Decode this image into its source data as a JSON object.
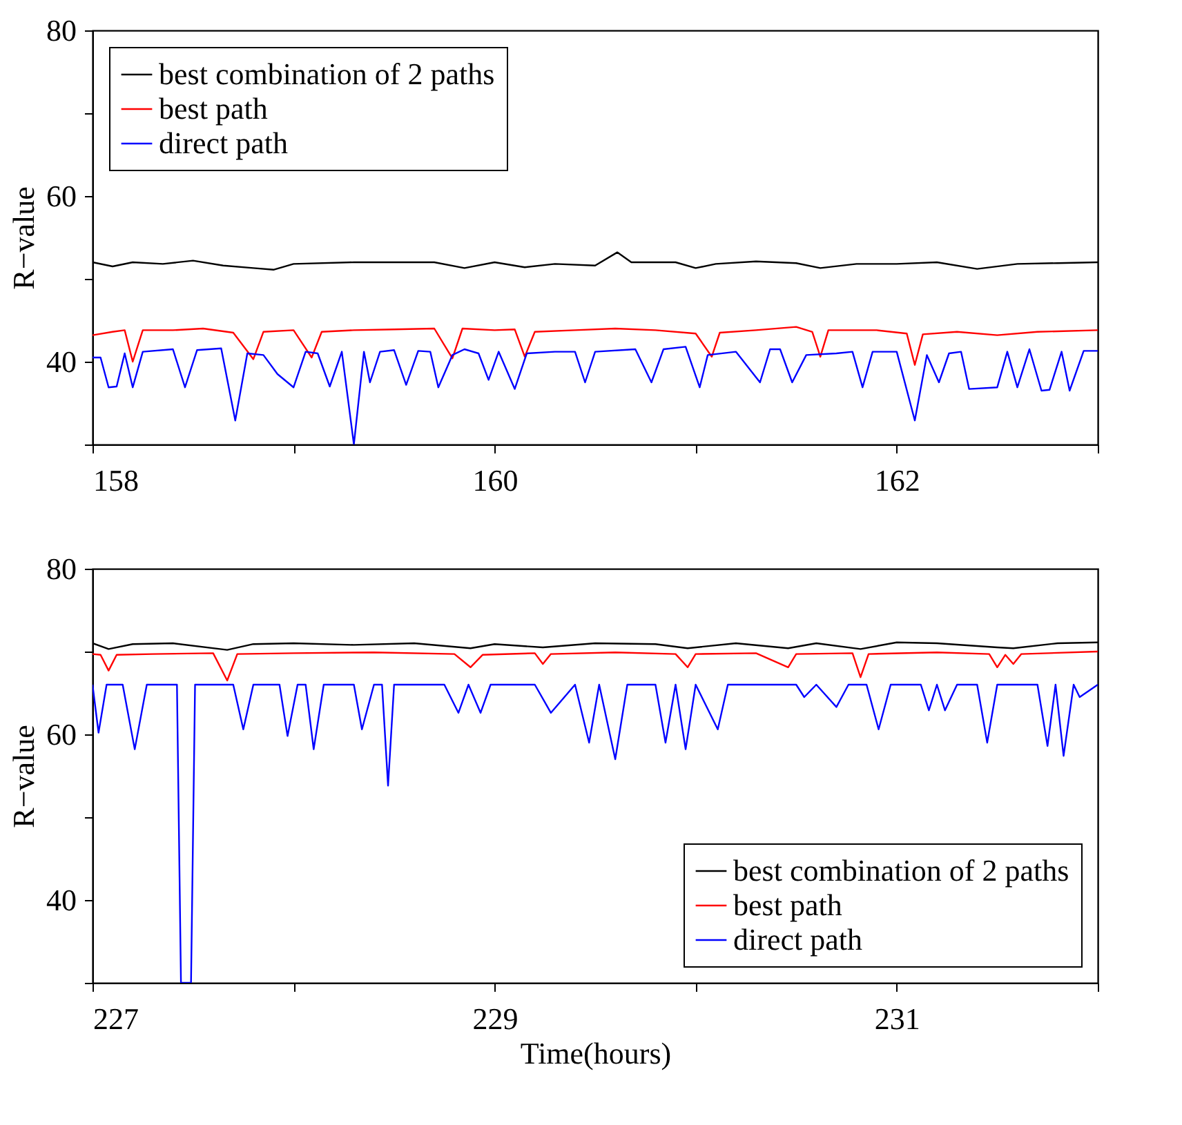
{
  "chart_data": [
    {
      "type": "line",
      "ylabel": "R−value",
      "xlim": [
        158,
        163
      ],
      "xticks": [
        158,
        {
          "value": 159,
          "label": null
        },
        160,
        {
          "value": 161,
          "label": null
        },
        162,
        {
          "value": 163,
          "label": null
        }
      ],
      "ylim": [
        30,
        80
      ],
      "yticks": [
        {
          "value": 30,
          "label": null
        },
        40,
        {
          "value": 50,
          "label": null
        },
        60,
        {
          "value": 70,
          "label": null
        },
        80
      ],
      "grid": false,
      "legend": "top left",
      "line_style": "solid",
      "marker": "none",
      "series": [
        {
          "name": "best combination of 2 paths",
          "color": "#000000",
          "x": [
            158.0,
            158.1,
            158.2,
            158.35,
            158.5,
            158.65,
            158.8,
            158.9,
            159.0,
            159.3,
            159.5,
            159.7,
            159.85,
            160.0,
            160.15,
            160.3,
            160.5,
            160.61,
            160.68,
            160.9,
            161.0,
            161.1,
            161.3,
            161.5,
            161.62,
            161.8,
            162.0,
            162.2,
            162.4,
            162.6,
            162.8,
            163.0
          ],
          "values": [
            52.0,
            51.5,
            52.0,
            51.8,
            52.2,
            51.6,
            51.3,
            51.1,
            51.8,
            52.0,
            52.0,
            52.0,
            51.3,
            52.0,
            51.4,
            51.8,
            51.6,
            53.2,
            52.0,
            52.0,
            51.3,
            51.8,
            52.1,
            51.9,
            51.3,
            51.8,
            51.8,
            52.0,
            51.2,
            51.8,
            51.9,
            52.0
          ]
        },
        {
          "name": "best path",
          "color": "#ff0000",
          "x": [
            158.0,
            158.1,
            158.16,
            158.2,
            158.25,
            158.4,
            158.55,
            158.7,
            158.8,
            158.85,
            159.0,
            159.09,
            159.14,
            159.3,
            159.5,
            159.7,
            159.79,
            159.84,
            160.0,
            160.1,
            160.15,
            160.2,
            160.4,
            160.6,
            160.8,
            161.0,
            161.08,
            161.12,
            161.3,
            161.5,
            161.58,
            161.62,
            161.66,
            161.9,
            162.05,
            162.09,
            162.13,
            162.3,
            162.5,
            162.7,
            163.0
          ],
          "values": [
            43.2,
            43.6,
            43.8,
            40.0,
            43.8,
            43.8,
            44.0,
            43.5,
            40.3,
            43.6,
            43.8,
            40.5,
            43.6,
            43.8,
            43.9,
            44.0,
            40.4,
            44.0,
            43.8,
            43.9,
            40.6,
            43.6,
            43.8,
            44.0,
            43.8,
            43.4,
            40.6,
            43.5,
            43.8,
            44.2,
            43.6,
            40.6,
            43.8,
            43.8,
            43.4,
            39.6,
            43.3,
            43.6,
            43.2,
            43.6,
            43.8
          ]
        },
        {
          "name": "direct path",
          "color": "#0000ff",
          "x": [
            158.0,
            158.04,
            158.08,
            158.12,
            158.16,
            158.2,
            158.25,
            158.4,
            158.46,
            158.52,
            158.64,
            158.71,
            158.77,
            158.85,
            158.92,
            159.0,
            159.06,
            159.12,
            159.18,
            159.24,
            159.3,
            159.35,
            159.38,
            159.43,
            159.5,
            159.56,
            159.62,
            159.68,
            159.72,
            159.79,
            159.85,
            159.92,
            159.97,
            160.02,
            160.1,
            160.16,
            160.3,
            160.4,
            160.45,
            160.5,
            160.7,
            160.78,
            160.84,
            160.95,
            161.02,
            161.06,
            161.2,
            161.32,
            161.37,
            161.42,
            161.48,
            161.55,
            161.7,
            161.78,
            161.83,
            161.88,
            162.0,
            162.09,
            162.15,
            162.21,
            162.26,
            162.32,
            162.36,
            162.5,
            162.55,
            162.6,
            162.66,
            162.72,
            162.76,
            162.82,
            162.86,
            162.93,
            163.0
          ],
          "values": [
            40.5,
            40.5,
            36.9,
            37.0,
            41.0,
            36.9,
            41.2,
            41.5,
            36.9,
            41.4,
            41.6,
            32.9,
            41.0,
            40.8,
            38.5,
            36.9,
            41.2,
            41.0,
            37.0,
            41.2,
            30.0,
            41.2,
            37.5,
            41.2,
            41.4,
            37.2,
            41.3,
            41.2,
            36.9,
            40.8,
            41.5,
            41.0,
            37.8,
            41.2,
            36.7,
            41.0,
            41.2,
            41.2,
            37.5,
            41.2,
            41.5,
            37.5,
            41.5,
            41.8,
            36.9,
            40.8,
            41.2,
            37.5,
            41.5,
            41.5,
            37.5,
            40.8,
            41.0,
            41.2,
            36.9,
            41.2,
            41.2,
            32.9,
            40.8,
            37.5,
            41.0,
            41.2,
            36.7,
            36.9,
            41.2,
            36.9,
            41.5,
            36.5,
            36.6,
            41.2,
            36.5,
            41.3,
            41.3
          ]
        }
      ]
    },
    {
      "type": "line",
      "xlabel": "Time(hours)",
      "ylabel": "R−value",
      "xlim": [
        227,
        232
      ],
      "xticks": [
        227,
        {
          "value": 228,
          "label": null
        },
        229,
        {
          "value": 230,
          "label": null
        },
        231,
        {
          "value": 232,
          "label": null
        }
      ],
      "ylim": [
        30,
        80
      ],
      "yticks": [
        {
          "value": 30,
          "label": null
        },
        40,
        {
          "value": 50,
          "label": null
        },
        60,
        {
          "value": 70,
          "label": null
        },
        80
      ],
      "grid": false,
      "legend": "bottom right",
      "line_style": "solid",
      "marker": "none",
      "series": [
        {
          "name": "best combination of 2 paths",
          "color": "#000000",
          "x": [
            227.0,
            227.08,
            227.2,
            227.4,
            227.67,
            227.8,
            228.0,
            228.3,
            228.6,
            228.88,
            229.0,
            229.24,
            229.5,
            229.8,
            229.96,
            230.2,
            230.46,
            230.6,
            230.82,
            231.0,
            231.2,
            231.5,
            231.58,
            231.8,
            232.0
          ],
          "values": [
            71.0,
            70.3,
            70.9,
            71.0,
            70.2,
            70.9,
            71.0,
            70.8,
            71.0,
            70.4,
            70.9,
            70.5,
            71.0,
            70.9,
            70.4,
            71.0,
            70.4,
            71.0,
            70.3,
            71.1,
            71.0,
            70.5,
            70.4,
            71.0,
            71.1
          ]
        },
        {
          "name": "best path",
          "color": "#ff0000",
          "x": [
            227.0,
            227.04,
            227.08,
            227.12,
            227.3,
            227.6,
            227.67,
            227.72,
            228.0,
            228.4,
            228.8,
            228.88,
            228.94,
            229.2,
            229.24,
            229.28,
            229.6,
            229.9,
            229.96,
            230.0,
            230.3,
            230.46,
            230.5,
            230.78,
            230.82,
            230.86,
            231.2,
            231.46,
            231.5,
            231.54,
            231.58,
            231.62,
            232.0
          ],
          "values": [
            69.7,
            69.6,
            67.7,
            69.6,
            69.7,
            69.8,
            66.5,
            69.7,
            69.8,
            69.9,
            69.7,
            68.1,
            69.6,
            69.8,
            68.5,
            69.7,
            69.9,
            69.7,
            68.1,
            69.7,
            69.8,
            68.1,
            69.7,
            69.8,
            66.9,
            69.7,
            69.9,
            69.7,
            68.1,
            69.6,
            68.5,
            69.7,
            70.0
          ]
        },
        {
          "name": "direct path",
          "color": "#0000ff",
          "x": [
            227.0,
            227.03,
            227.07,
            227.15,
            227.21,
            227.27,
            227.42,
            227.44,
            227.49,
            227.51,
            227.7,
            227.75,
            227.8,
            227.93,
            227.97,
            228.02,
            228.06,
            228.1,
            228.15,
            228.3,
            228.34,
            228.4,
            228.44,
            228.47,
            228.5,
            228.75,
            228.82,
            228.87,
            228.93,
            228.98,
            229.2,
            229.28,
            229.4,
            229.47,
            229.52,
            229.6,
            229.66,
            229.8,
            229.85,
            229.9,
            229.95,
            230.0,
            230.11,
            230.16,
            230.5,
            230.54,
            230.6,
            230.7,
            230.76,
            230.85,
            230.91,
            230.97,
            231.12,
            231.16,
            231.2,
            231.24,
            231.3,
            231.4,
            231.45,
            231.5,
            231.7,
            231.75,
            231.79,
            231.83,
            231.88,
            231.91,
            232.0
          ],
          "values": [
            66.0,
            60.2,
            66.0,
            66.0,
            58.2,
            66.0,
            66.0,
            30.0,
            30.0,
            66.0,
            66.0,
            60.6,
            66.0,
            66.0,
            59.8,
            66.0,
            66.0,
            58.2,
            66.0,
            66.0,
            60.6,
            66.0,
            66.0,
            53.8,
            66.0,
            66.0,
            62.6,
            66.0,
            62.6,
            66.0,
            66.0,
            62.6,
            66.0,
            59.0,
            66.0,
            57.0,
            66.0,
            66.0,
            59.0,
            66.0,
            58.2,
            66.0,
            60.6,
            66.0,
            66.0,
            64.5,
            66.0,
            63.3,
            66.0,
            66.0,
            60.6,
            66.0,
            66.0,
            62.9,
            66.0,
            62.9,
            66.0,
            66.0,
            59.0,
            66.0,
            66.0,
            58.6,
            66.0,
            57.4,
            66.0,
            64.5,
            66.0
          ]
        }
      ]
    }
  ]
}
